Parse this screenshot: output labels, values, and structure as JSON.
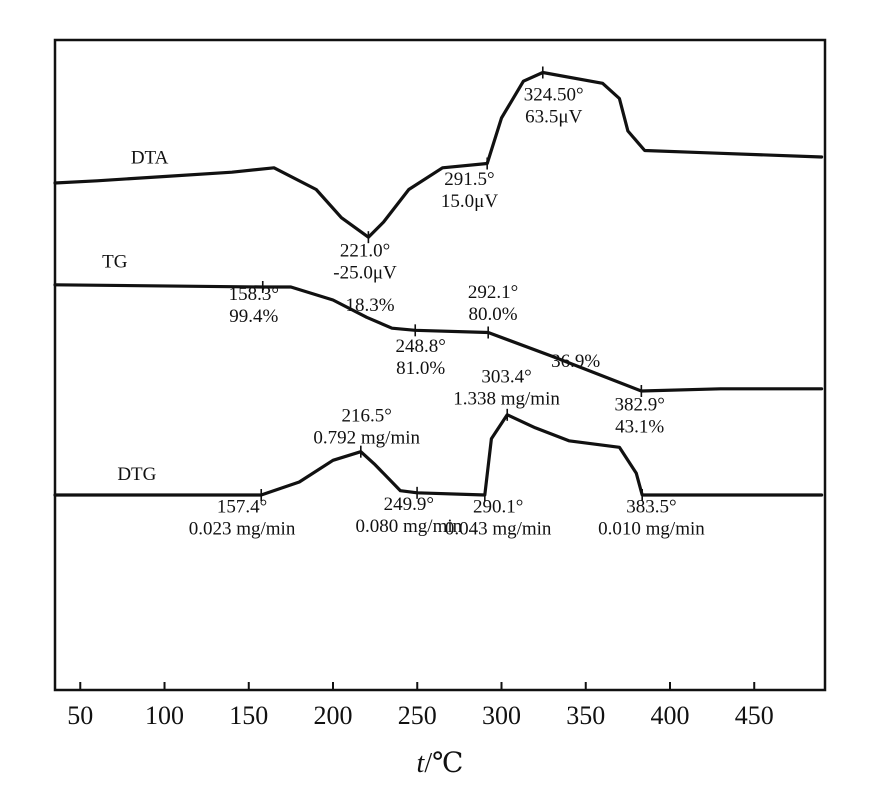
{
  "chart_data": {
    "type": "line",
    "title": "",
    "xlabel": {
      "italic": "t",
      "rest": "/℃"
    },
    "ylabel": "",
    "xlim": [
      35,
      492
    ],
    "ylim": [
      0,
      3
    ],
    "grid": false,
    "x_ticks": [
      50,
      100,
      150,
      200,
      250,
      300,
      350,
      400,
      450
    ],
    "x_tick_labels": [
      "50",
      "100",
      "150",
      "200",
      "250",
      "300",
      "350",
      "400",
      "450"
    ],
    "series": [
      {
        "name": "DTA",
        "points": [
          [
            35,
            2.34
          ],
          [
            60,
            2.35
          ],
          [
            100,
            2.37
          ],
          [
            140,
            2.39
          ],
          [
            165,
            2.41
          ],
          [
            190,
            2.31
          ],
          [
            205,
            2.18
          ],
          [
            221,
            2.09
          ],
          [
            230,
            2.16
          ],
          [
            245,
            2.31
          ],
          [
            265,
            2.41
          ],
          [
            291.5,
            2.43
          ],
          [
            300,
            2.64
          ],
          [
            313,
            2.81
          ],
          [
            324.5,
            2.85
          ],
          [
            360,
            2.8
          ],
          [
            370,
            2.73
          ],
          [
            375,
            2.58
          ],
          [
            385,
            2.49
          ],
          [
            420,
            2.48
          ],
          [
            490,
            2.46
          ]
        ]
      },
      {
        "name": "TG",
        "points": [
          [
            35,
            1.87
          ],
          [
            158.3,
            1.86
          ],
          [
            175,
            1.86
          ],
          [
            200,
            1.8
          ],
          [
            220,
            1.72
          ],
          [
            235,
            1.67
          ],
          [
            248.8,
            1.66
          ],
          [
            292.1,
            1.65
          ],
          [
            330,
            1.54
          ],
          [
            383,
            1.38
          ],
          [
            430,
            1.39
          ],
          [
            490,
            1.39
          ]
        ]
      },
      {
        "name": "DTG",
        "points": [
          [
            35,
            0.9
          ],
          [
            157.4,
            0.9
          ],
          [
            180,
            0.96
          ],
          [
            200,
            1.06
          ],
          [
            216.5,
            1.1
          ],
          [
            225,
            1.04
          ],
          [
            240,
            0.92
          ],
          [
            249.9,
            0.91
          ],
          [
            290.1,
            0.9
          ],
          [
            294,
            1.16
          ],
          [
            303.4,
            1.27
          ],
          [
            320,
            1.21
          ],
          [
            340,
            1.15
          ],
          [
            370,
            1.12
          ],
          [
            380,
            1.0
          ],
          [
            383.5,
            0.9
          ],
          [
            420,
            0.9
          ],
          [
            490,
            0.9
          ]
        ]
      }
    ],
    "series_labels": [
      {
        "series": "DTA",
        "text": "DTA",
        "x": 80,
        "y": 2.43
      },
      {
        "series": "TG",
        "text": "TG",
        "x": 63,
        "y": 1.95
      },
      {
        "series": "DTG",
        "text": "DTG",
        "x": 72,
        "y": 0.97
      }
    ],
    "marks": [
      {
        "series": "DTA",
        "x": 221,
        "y": 2.09
      },
      {
        "series": "DTA",
        "x": 291.5,
        "y": 2.43
      },
      {
        "series": "DTA",
        "x": 324.5,
        "y": 2.85
      },
      {
        "series": "TG",
        "x": 158.3,
        "y": 1.86
      },
      {
        "series": "TG",
        "x": 248.8,
        "y": 1.66
      },
      {
        "series": "TG",
        "x": 292.1,
        "y": 1.65
      },
      {
        "series": "TG",
        "x": 383,
        "y": 1.38
      },
      {
        "series": "DTG",
        "x": 157.4,
        "y": 0.9
      },
      {
        "series": "DTG",
        "x": 216.5,
        "y": 1.1
      },
      {
        "series": "DTG",
        "x": 249.9,
        "y": 0.91
      },
      {
        "series": "DTG",
        "x": 290.1,
        "y": 0.9
      },
      {
        "series": "DTG",
        "x": 303.4,
        "y": 1.27
      },
      {
        "series": "DTG",
        "x": 383.5,
        "y": 0.9
      }
    ],
    "annotations": [
      {
        "series": "DTA",
        "lines": [
          "221.0°",
          "-25.0μV"
        ],
        "x": 219,
        "y": 2.0,
        "anchor": "middle"
      },
      {
        "series": "DTA",
        "lines": [
          "291.5°",
          "15.0μV"
        ],
        "x": 281,
        "y": 2.33,
        "anchor": "middle"
      },
      {
        "series": "DTA",
        "lines": [
          "324.50°",
          "63.5μV"
        ],
        "x": 331,
        "y": 2.72,
        "anchor": "middle"
      },
      {
        "series": "TG",
        "lines": [
          "158.3°",
          "99.4%"
        ],
        "x": 153,
        "y": 1.8,
        "anchor": "middle"
      },
      {
        "series": "TG",
        "lines": [
          "18.3%"
        ],
        "x": 222,
        "y": 1.75,
        "anchor": "middle"
      },
      {
        "series": "TG",
        "lines": [
          "248.8°",
          "81.0%"
        ],
        "x": 252,
        "y": 1.56,
        "anchor": "middle"
      },
      {
        "series": "TG",
        "lines": [
          "292.1°",
          "80.0%"
        ],
        "x": 295,
        "y": 1.81,
        "anchor": "middle"
      },
      {
        "series": "TG",
        "lines": [
          "36.9%"
        ],
        "x": 344,
        "y": 1.49,
        "anchor": "middle"
      },
      {
        "series": "TG",
        "lines": [
          "382.9°",
          "43.1%"
        ],
        "x": 382,
        "y": 1.29,
        "anchor": "middle"
      },
      {
        "series": "DTG",
        "lines": [
          "157.4°",
          "0.023 mg/min"
        ],
        "x": 146,
        "y": 0.82,
        "anchor": "middle"
      },
      {
        "series": "DTG",
        "lines": [
          "216.5°",
          "0.792 mg/min"
        ],
        "x": 220,
        "y": 1.24,
        "anchor": "middle"
      },
      {
        "series": "DTG",
        "lines": [
          "249.9°",
          "0.080 mg/min"
        ],
        "x": 245,
        "y": 0.83,
        "anchor": "middle"
      },
      {
        "series": "DTG",
        "lines": [
          "303.4°",
          "1.338 mg/min"
        ],
        "x": 303,
        "y": 1.42,
        "anchor": "middle"
      },
      {
        "series": "DTG",
        "lines": [
          "290.1°",
          "0.043 mg/min"
        ],
        "x": 298,
        "y": 0.82,
        "anchor": "middle"
      },
      {
        "series": "DTG",
        "lines": [
          "383.5°",
          "0.010 mg/min"
        ],
        "x": 389,
        "y": 0.82,
        "anchor": "middle"
      }
    ]
  }
}
